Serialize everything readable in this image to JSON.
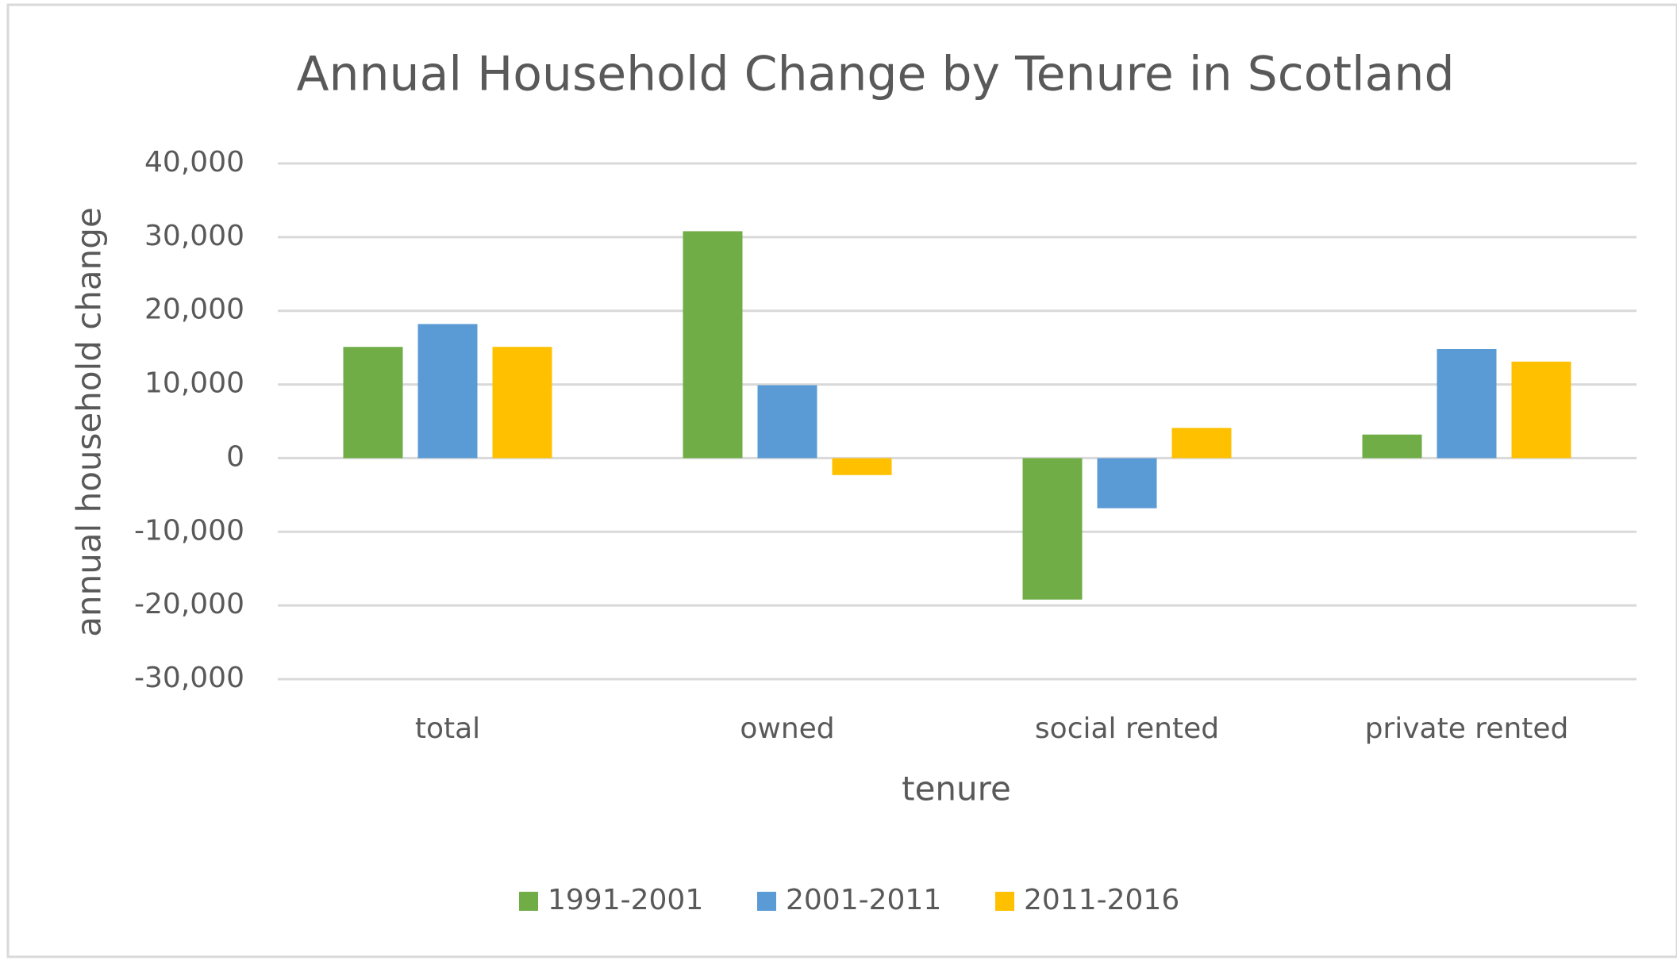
{
  "chart_data": {
    "type": "bar",
    "title": "Annual Household Change by Tenure in Scotland",
    "x_label": "tenure",
    "y_label": "annual household change",
    "categories": [
      "total",
      "owned",
      "social rented",
      "private rented"
    ],
    "series": [
      {
        "name": "1991-2001",
        "color": "#70ad47",
        "values": [
          15100,
          30800,
          -19200,
          3200
        ]
      },
      {
        "name": "2001-2011",
        "color": "#5b9bd5",
        "values": [
          18200,
          9900,
          -6800,
          14800
        ]
      },
      {
        "name": "2011-2016",
        "color": "#ffc000",
        "values": [
          15100,
          -2300,
          4100,
          13100
        ]
      }
    ],
    "ylim": [
      -30000,
      40000
    ],
    "yticks": [
      {
        "value": -30000,
        "label": "-30,000"
      },
      {
        "value": -20000,
        "label": "-20,000"
      },
      {
        "value": -10000,
        "label": "-10,000"
      },
      0,
      {
        "value": 10000,
        "label": "10,000"
      },
      {
        "value": 20000,
        "label": "20,000"
      },
      {
        "value": 30000,
        "label": "30,000"
      },
      {
        "value": 40000,
        "label": "40,000"
      }
    ],
    "grid": true,
    "legend": "bottom"
  }
}
